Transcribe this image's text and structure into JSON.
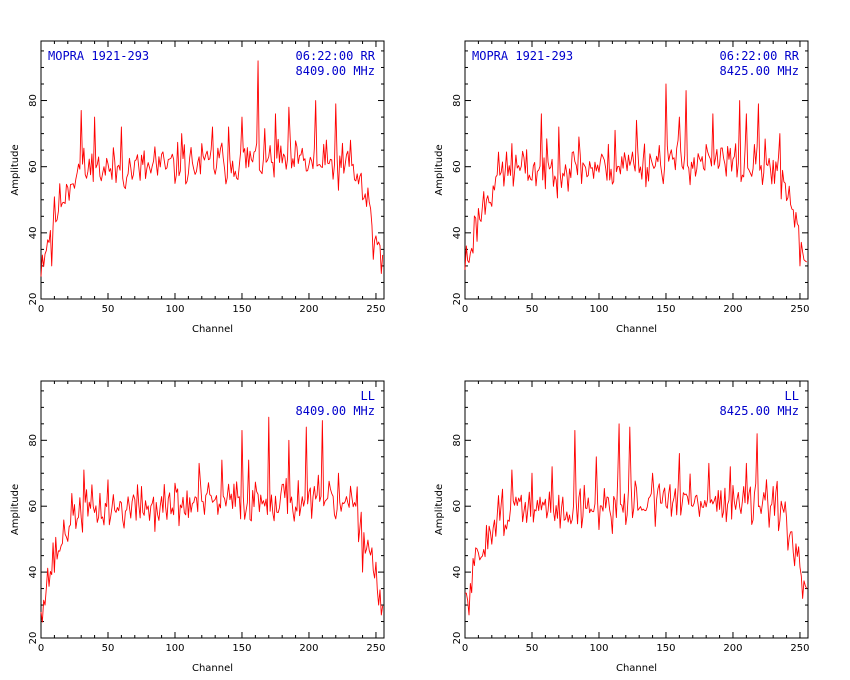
{
  "chart_data": [
    {
      "type": "line",
      "source": "MOPRA 1921-293",
      "time_pol": "06:22:00  RR",
      "freq": "8409.00  MHz",
      "xlabel": "Channel",
      "ylabel": "Amplitude",
      "xlim": [
        0,
        256
      ],
      "ylim": [
        20,
        98
      ],
      "xticks": [
        0,
        50,
        100,
        150,
        200,
        250
      ],
      "yticks": [
        20,
        40,
        60,
        80
      ],
      "color": "#ff0000",
      "seed": 11,
      "spikes": [
        [
          8,
          30
        ],
        [
          30,
          77
        ],
        [
          40,
          75
        ],
        [
          60,
          72
        ],
        [
          85,
          66
        ],
        [
          105,
          70
        ],
        [
          128,
          72
        ],
        [
          140,
          72
        ],
        [
          150,
          75
        ],
        [
          162,
          92
        ],
        [
          175,
          76
        ],
        [
          185,
          78
        ],
        [
          205,
          80
        ],
        [
          220,
          79
        ],
        [
          231,
          68
        ],
        [
          240,
          50
        ],
        [
          248,
          32
        ]
      ]
    },
    {
      "type": "line",
      "source": "MOPRA 1921-293",
      "time_pol": "06:22:00  RR",
      "freq": "8425.00  MHz",
      "xlabel": "Channel",
      "ylabel": "Amplitude",
      "xlim": [
        0,
        256
      ],
      "ylim": [
        20,
        98
      ],
      "xticks": [
        0,
        50,
        100,
        150,
        200,
        250
      ],
      "yticks": [
        20,
        40,
        60,
        80
      ],
      "color": "#ff0000",
      "seed": 23,
      "spikes": [
        [
          3,
          31
        ],
        [
          20,
          48
        ],
        [
          35,
          67
        ],
        [
          57,
          76
        ],
        [
          70,
          72
        ],
        [
          85,
          69
        ],
        [
          112,
          71
        ],
        [
          128,
          74
        ],
        [
          150,
          85
        ],
        [
          160,
          75
        ],
        [
          165,
          83
        ],
        [
          185,
          76
        ],
        [
          205,
          80
        ],
        [
          210,
          76
        ],
        [
          219,
          79
        ],
        [
          235,
          70
        ],
        [
          250,
          30
        ]
      ]
    },
    {
      "type": "line",
      "source": "",
      "time_pol": "LL",
      "freq": "8409.00  MHz",
      "xlabel": "Channel",
      "ylabel": "Amplitude",
      "xlim": [
        0,
        256
      ],
      "ylim": [
        20,
        98
      ],
      "xticks": [
        0,
        50,
        100,
        150,
        200,
        250
      ],
      "yticks": [
        20,
        40,
        60,
        80
      ],
      "color": "#ff0000",
      "seed": 37,
      "spikes": [
        [
          3,
          30
        ],
        [
          15,
          48
        ],
        [
          32,
          71
        ],
        [
          50,
          68
        ],
        [
          75,
          66
        ],
        [
          100,
          67
        ],
        [
          118,
          73
        ],
        [
          135,
          74
        ],
        [
          150,
          83
        ],
        [
          155,
          74
        ],
        [
          170,
          87
        ],
        [
          185,
          80
        ],
        [
          198,
          84
        ],
        [
          210,
          86
        ],
        [
          222,
          70
        ],
        [
          240,
          40
        ],
        [
          252,
          30
        ]
      ]
    },
    {
      "type": "line",
      "source": "",
      "time_pol": "LL",
      "freq": "8425.00  MHz",
      "xlabel": "Channel",
      "ylabel": "Amplitude",
      "xlim": [
        0,
        256
      ],
      "ylim": [
        20,
        98
      ],
      "xticks": [
        0,
        50,
        100,
        150,
        200,
        250
      ],
      "yticks": [
        20,
        40,
        60,
        80
      ],
      "color": "#ff0000",
      "seed": 51,
      "spikes": [
        [
          3,
          27
        ],
        [
          35,
          71
        ],
        [
          50,
          70
        ],
        [
          65,
          72
        ],
        [
          82,
          83
        ],
        [
          98,
          75
        ],
        [
          115,
          85
        ],
        [
          123,
          84
        ],
        [
          140,
          70
        ],
        [
          160,
          76
        ],
        [
          182,
          73
        ],
        [
          198,
          72
        ],
        [
          210,
          73
        ],
        [
          218,
          82
        ],
        [
          230,
          66
        ],
        [
          245,
          46
        ],
        [
          252,
          32
        ]
      ]
    }
  ]
}
